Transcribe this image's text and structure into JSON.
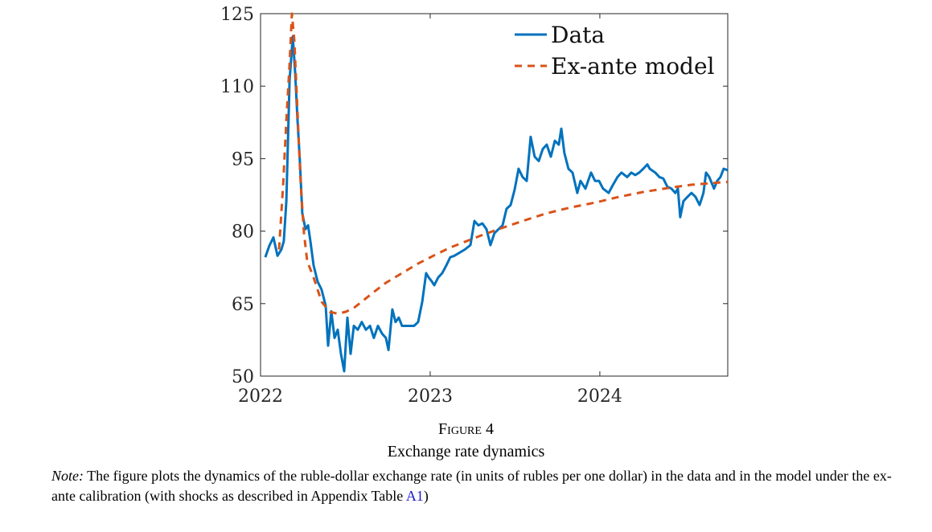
{
  "chart_data": {
    "type": "line",
    "xlim": [
      2022,
      2024.754
    ],
    "xticks": [
      2022,
      2023,
      2024
    ],
    "ylim": [
      50,
      125
    ],
    "yticks": [
      50,
      65,
      80,
      95,
      110,
      125
    ],
    "legend": "upper right",
    "series": [
      {
        "name": "Data",
        "color": "#0072bd",
        "dash": false,
        "x": [
          2022.028,
          2022.052,
          2022.076,
          2022.1,
          2022.123,
          2022.137,
          2022.152,
          2022.171,
          2022.19,
          2022.204,
          2022.218,
          2022.232,
          2022.246,
          2022.265,
          2022.28,
          2022.294,
          2022.313,
          2022.336,
          2022.36,
          2022.384,
          2022.398,
          2022.417,
          2022.436,
          2022.455,
          2022.474,
          2022.493,
          2022.512,
          2022.531,
          2022.55,
          2022.573,
          2022.597,
          2022.621,
          2022.645,
          2022.668,
          2022.692,
          2022.716,
          2022.739,
          2022.754,
          2022.777,
          2022.796,
          2022.815,
          2022.834,
          2022.872,
          2022.905,
          2022.929,
          2022.953,
          2022.976,
          2022.991,
          2023.009,
          2023.024,
          2023.047,
          2023.071,
          2023.095,
          2023.118,
          2023.142,
          2023.166,
          2023.204,
          2023.237,
          2023.261,
          2023.284,
          2023.308,
          2023.332,
          2023.355,
          2023.379,
          2023.403,
          2023.427,
          2023.45,
          2023.474,
          2023.498,
          2023.521,
          2023.545,
          2023.569,
          2023.592,
          2023.616,
          2023.64,
          2023.664,
          2023.687,
          2023.711,
          2023.735,
          2023.758,
          2023.773,
          2023.791,
          2023.815,
          2023.839,
          2023.867,
          2023.886,
          2023.915,
          2023.948,
          2023.972,
          2023.995,
          2024.019,
          2024.052,
          2024.076,
          2024.104,
          2024.128,
          2024.161,
          2024.185,
          2024.209,
          2024.232,
          2024.256,
          2024.28,
          2024.294,
          2024.327,
          2024.351,
          2024.374,
          2024.398,
          2024.422,
          2024.445,
          2024.46,
          2024.474,
          2024.493,
          2024.517,
          2024.54,
          2024.564,
          2024.588,
          2024.611,
          2024.626,
          2024.645,
          2024.673,
          2024.692,
          2024.711,
          2024.73,
          2024.754
        ],
        "values": [
          74.6,
          77,
          78.7,
          74.9,
          76.2,
          77.9,
          86.2,
          111.2,
          120.3,
          112.9,
          102.9,
          94.5,
          83.7,
          80.4,
          81.2,
          77.9,
          72.9,
          69.6,
          67.9,
          64.6,
          56.3,
          63.4,
          57.9,
          59.6,
          54.6,
          51.0,
          62.1,
          54.6,
          60.4,
          59.6,
          61.2,
          59.6,
          60.4,
          57.9,
          60.4,
          58.8,
          57.9,
          55.4,
          63.8,
          61.2,
          62.1,
          60.4,
          60.4,
          60.4,
          61.2,
          65.4,
          71.3,
          70.4,
          69.6,
          68.8,
          70.4,
          71.3,
          72.9,
          74.6,
          74.9,
          75.4,
          76.2,
          77.1,
          82.1,
          81.2,
          81.6,
          80.4,
          77.1,
          79.6,
          80.4,
          81.2,
          84.6,
          85.4,
          88.6,
          92.9,
          91.2,
          90.4,
          99.5,
          95.4,
          94.5,
          97.0,
          97.9,
          95.4,
          98.7,
          97.9,
          101.2,
          96.2,
          92.9,
          92.1,
          87.9,
          90.4,
          88.8,
          92.1,
          90.4,
          90.4,
          88.8,
          87.9,
          89.5,
          91.2,
          92.1,
          91.2,
          92.1,
          91.6,
          92.1,
          92.9,
          93.8,
          92.9,
          92.1,
          91.2,
          90.9,
          89.2,
          88.8,
          87.9,
          88.8,
          82.9,
          86.2,
          87.1,
          87.9,
          87.1,
          85.4,
          87.9,
          92.1,
          91.2,
          88.8,
          90.4,
          91.2,
          92.9,
          92.6
        ]
      },
      {
        "name": "Ex-ante model",
        "color": "#d95319",
        "dash": true,
        "x": [
          2022.109,
          2022.133,
          2022.152,
          2022.171,
          2022.185,
          2022.199,
          2022.218,
          2022.237,
          2022.256,
          2022.275,
          2022.313,
          2022.36,
          2022.408,
          2022.455,
          2022.502,
          2022.55,
          2022.597,
          2022.668,
          2022.739,
          2022.834,
          2022.929,
          2023.024,
          2023.118,
          2023.213,
          2023.308,
          2023.403,
          2023.545,
          2023.687,
          2023.829,
          2023.972,
          2024.114,
          2024.256,
          2024.398,
          2024.54,
          2024.754
        ],
        "values": [
          76.2,
          89.6,
          102.9,
          114.5,
          125,
          119.5,
          104.5,
          89.6,
          79.6,
          73.8,
          70.4,
          65.4,
          63.3,
          62.9,
          63.3,
          64.1,
          65.4,
          67.4,
          69.3,
          71.3,
          73.3,
          75.0,
          76.6,
          77.9,
          79.2,
          80.4,
          82.1,
          83.7,
          84.9,
          85.9,
          87.1,
          88.1,
          88.9,
          89.6,
          90.2
        ]
      }
    ]
  },
  "caption": {
    "label": "Figure 4",
    "title": "Exchange rate dynamics"
  },
  "note": {
    "label": "Note:",
    "text": " The figure plots the dynamics of the ruble-dollar exchange rate (in units of rubles per one dollar) in the data and in the model under the ex-ante calibration (with shocks as described in Appendix Table ",
    "link": "A1",
    "end": ")"
  }
}
